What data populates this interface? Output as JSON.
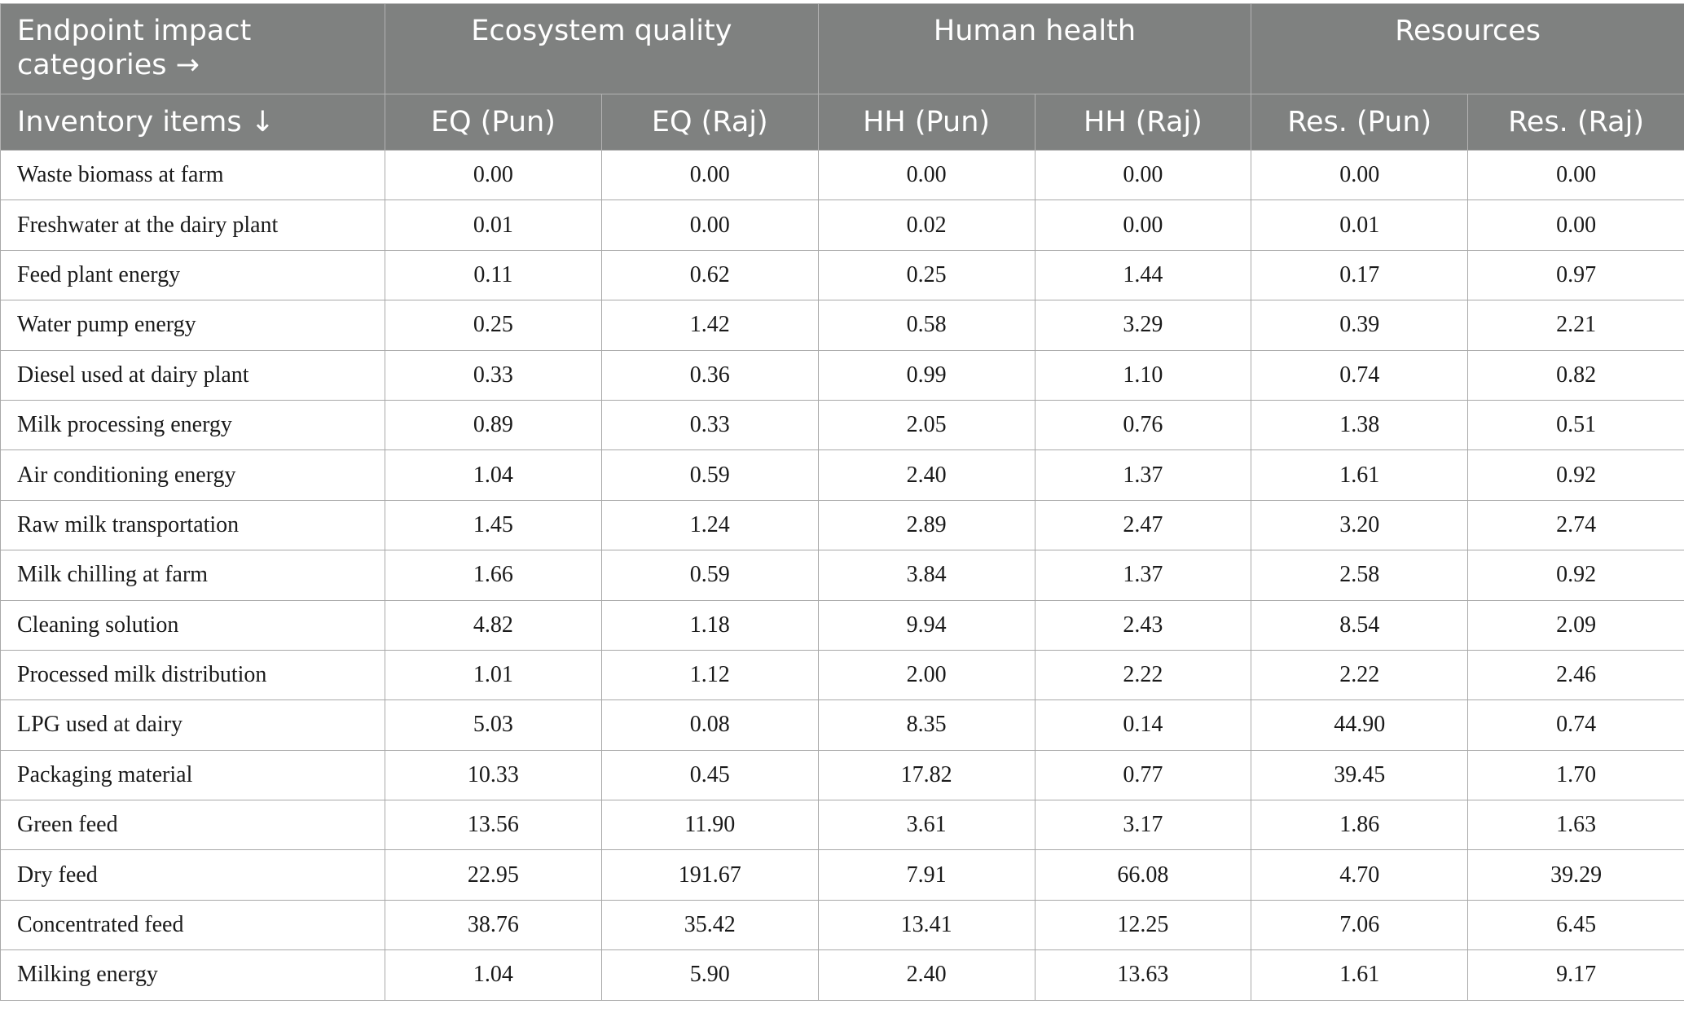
{
  "header": {
    "corner_top": "Endpoint impact categories →",
    "corner_bottom": "Inventory items ↓",
    "groups": [
      "Ecosystem quality",
      "Human health",
      "Resources"
    ],
    "columns": [
      "EQ (Pun)",
      "EQ (Raj)",
      "HH (Pun)",
      "HH (Raj)",
      "Res. (Pun)",
      "Res. (Raj)"
    ]
  },
  "rows": [
    {
      "item": "Waste biomass at farm",
      "values": [
        "0.00",
        "0.00",
        "0.00",
        "0.00",
        "0.00",
        "0.00"
      ]
    },
    {
      "item": "Freshwater at the dairy plant",
      "values": [
        "0.01",
        "0.00",
        "0.02",
        "0.00",
        "0.01",
        "0.00"
      ]
    },
    {
      "item": "Feed plant energy",
      "values": [
        "0.11",
        "0.62",
        "0.25",
        "1.44",
        "0.17",
        "0.97"
      ]
    },
    {
      "item": "Water pump energy",
      "values": [
        "0.25",
        "1.42",
        "0.58",
        "3.29",
        "0.39",
        "2.21"
      ]
    },
    {
      "item": "Diesel used at dairy plant",
      "values": [
        "0.33",
        "0.36",
        "0.99",
        "1.10",
        "0.74",
        "0.82"
      ]
    },
    {
      "item": "Milk processing energy",
      "values": [
        "0.89",
        "0.33",
        "2.05",
        "0.76",
        "1.38",
        "0.51"
      ]
    },
    {
      "item": "Air conditioning energy",
      "values": [
        "1.04",
        "0.59",
        "2.40",
        "1.37",
        "1.61",
        "0.92"
      ]
    },
    {
      "item": "Raw milk transportation",
      "values": [
        "1.45",
        "1.24",
        "2.89",
        "2.47",
        "3.20",
        "2.74"
      ]
    },
    {
      "item": "Milk chilling at farm",
      "values": [
        "1.66",
        "0.59",
        "3.84",
        "1.37",
        "2.58",
        "0.92"
      ]
    },
    {
      "item": "Cleaning solution",
      "values": [
        "4.82",
        "1.18",
        "9.94",
        "2.43",
        "8.54",
        "2.09"
      ]
    },
    {
      "item": "Processed milk distribution",
      "values": [
        "1.01",
        "1.12",
        "2.00",
        "2.22",
        "2.22",
        "2.46"
      ]
    },
    {
      "item": "LPG used at dairy",
      "values": [
        "5.03",
        "0.08",
        "8.35",
        "0.14",
        "44.90",
        "0.74"
      ]
    },
    {
      "item": "Packaging material",
      "values": [
        "10.33",
        "0.45",
        "17.82",
        "0.77",
        "39.45",
        "1.70"
      ]
    },
    {
      "item": "Green feed",
      "values": [
        "13.56",
        "11.90",
        "3.61",
        "3.17",
        "1.86",
        "1.63"
      ]
    },
    {
      "item": "Dry feed",
      "values": [
        "22.95",
        "191.67",
        "7.91",
        "66.08",
        "4.70",
        "39.29"
      ]
    },
    {
      "item": "Concentrated feed",
      "values": [
        "38.76",
        "35.42",
        "13.41",
        "12.25",
        "7.06",
        "6.45"
      ]
    },
    {
      "item": "Milking energy",
      "values": [
        "1.04",
        "5.90",
        "2.40",
        "13.63",
        "1.61",
        "9.17"
      ]
    }
  ]
}
